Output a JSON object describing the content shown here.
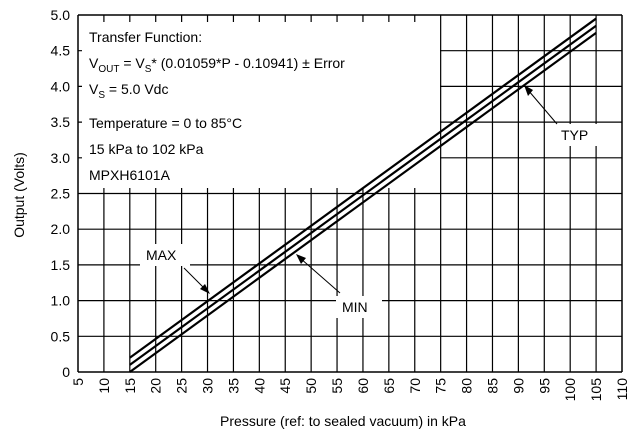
{
  "chart_data": {
    "type": "line",
    "title": "",
    "xlabel": "Pressure (ref: to sealed vacuum) in kPa",
    "ylabel": "Output (Volts)",
    "xlim": [
      5,
      110
    ],
    "ylim": [
      0,
      5.0
    ],
    "x_ticks": [
      "5",
      "10",
      "15",
      "20",
      "25",
      "30",
      "35",
      "40",
      "45",
      "50",
      "55",
      "60",
      "65",
      "70",
      "75",
      "80",
      "85",
      "90",
      "95",
      "100",
      "105",
      "110"
    ],
    "y_ticks": [
      "0",
      "0.5",
      "1.0",
      "1.5",
      "2.0",
      "2.5",
      "3.0",
      "3.5",
      "4.0",
      "4.5",
      "5.0"
    ],
    "grid": true,
    "series": [
      {
        "name": "MAX",
        "x": [
          15,
          105
        ],
        "y": [
          0.2,
          4.95
        ]
      },
      {
        "name": "TYP",
        "x": [
          15,
          105
        ],
        "y": [
          0.1,
          4.85
        ]
      },
      {
        "name": "MIN",
        "x": [
          15,
          105
        ],
        "y": [
          0.0,
          4.75
        ]
      }
    ],
    "annotations": {
      "line1": "Transfer Function:",
      "line2_v": "V",
      "line2_sub": "OUT",
      "line2_mid": " = V",
      "line2_sub2": "S",
      "line2_rest": "* (0.01059*P - 0.10941) ± Error",
      "line3_v": "V",
      "line3_sub": "S",
      "line3_rest": " = 5.0 Vdc",
      "line4": "Temperature = 0 to 85°C",
      "line5": "15 kPa to 102 kPa",
      "line6": "MPXH6101A",
      "max_label": "MAX",
      "min_label": "MIN",
      "typ_label": "TYP"
    }
  }
}
